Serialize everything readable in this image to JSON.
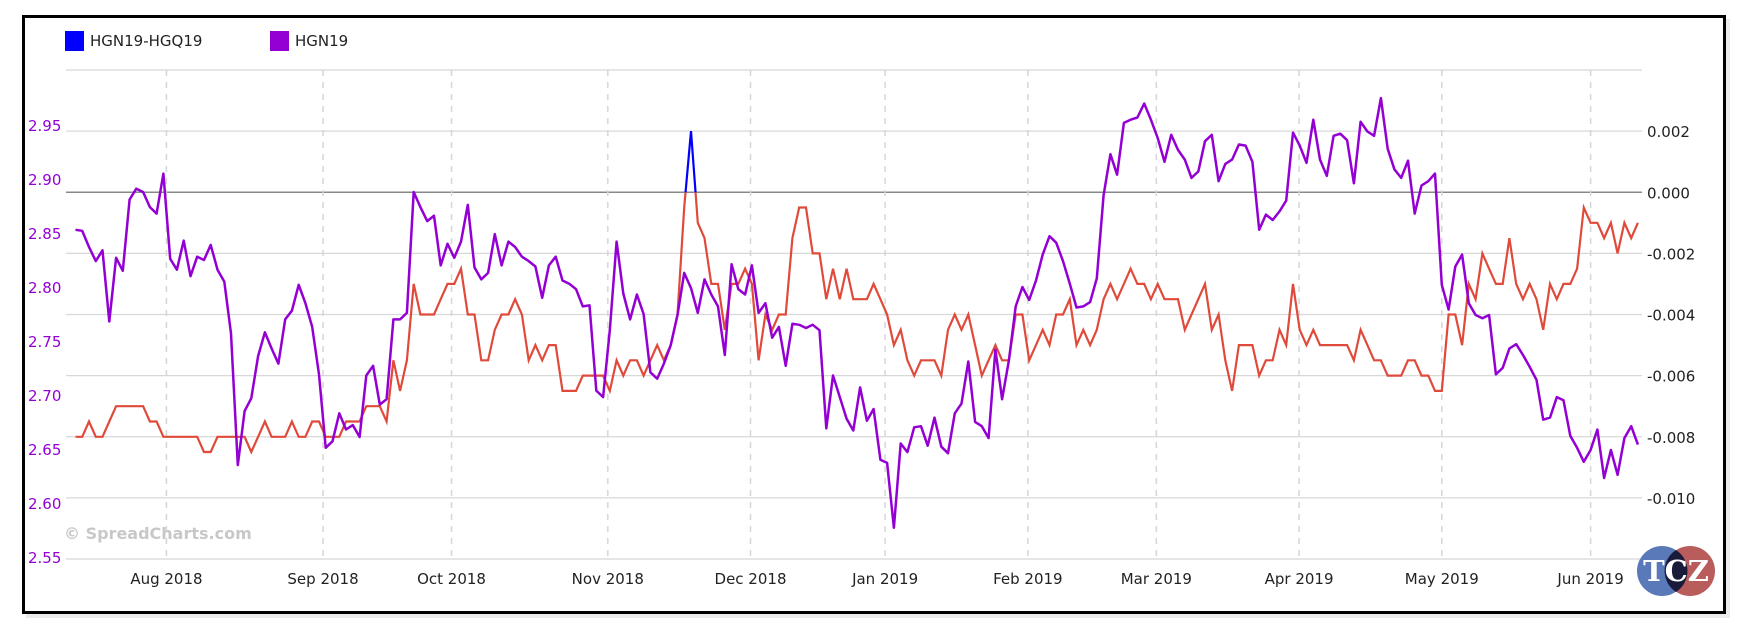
{
  "legend": [
    {
      "label": "HGN19-HGQ19",
      "color": "#0000ff"
    },
    {
      "label": "HGN19",
      "color": "#9400d3"
    }
  ],
  "watermark": "© SpreadCharts.com",
  "logo_text": "TCZ",
  "colors": {
    "spread_positive": "#0000ff",
    "spread_negative": "#e04a3b",
    "outright": "#9400d3",
    "left_axis": "#9400d3",
    "zero_line": "#888888"
  },
  "chart_data": {
    "type": "line",
    "title": "",
    "x_axis": {
      "type": "trading-day index",
      "range": [
        -1.4,
        231.6
      ],
      "ticks": [
        {
          "label": "Aug 2018",
          "at": 13.45
        },
        {
          "label": "Sep 2018",
          "at": 36.6
        },
        {
          "label": "Oct 2018",
          "at": 55.6
        },
        {
          "label": "Nov 2018",
          "at": 78.7
        },
        {
          "label": "Dec 2018",
          "at": 99.8
        },
        {
          "label": "Jan 2019",
          "at": 119.7
        },
        {
          "label": "Feb 2019",
          "at": 140.8
        },
        {
          "label": "Mar 2019",
          "at": 159.8
        },
        {
          "label": "Apr 2019",
          "at": 180.9
        },
        {
          "label": "May 2019",
          "at": 202.0
        },
        {
          "label": "Jun 2019",
          "at": 224.0
        }
      ]
    },
    "left_axis": {
      "series": "HGN19",
      "ylim": [
        2.548,
        3.001
      ],
      "ticks": [
        "2.55",
        "2.60",
        "2.65",
        "2.70",
        "2.75",
        "2.80",
        "2.85",
        "2.90",
        "2.95"
      ]
    },
    "right_axis": {
      "series": "HGN19-HGQ19",
      "ylim": [
        -0.012,
        0.004
      ],
      "ticks": [
        "0.002",
        "0.000",
        "-0.002",
        "-0.004",
        "-0.006",
        "-0.008",
        "-0.010"
      ],
      "gridlines": [
        0.004,
        0.002,
        0,
        -0.002,
        -0.004,
        -0.006,
        -0.008,
        -0.01,
        -0.012
      ]
    },
    "series": [
      {
        "name": "HGN19",
        "axis": "left",
        "values": [
          2.853,
          2.852,
          2.837,
          2.824,
          2.834,
          2.768,
          2.827,
          2.815,
          2.881,
          2.891,
          2.888,
          2.874,
          2.868,
          2.905,
          2.826,
          2.816,
          2.843,
          2.81,
          2.828,
          2.825,
          2.839,
          2.816,
          2.805,
          2.757,
          2.635,
          2.685,
          2.697,
          2.736,
          2.758,
          2.743,
          2.729,
          2.77,
          2.778,
          2.802,
          2.785,
          2.763,
          2.719,
          2.651,
          2.657,
          2.683,
          2.668,
          2.672,
          2.661,
          2.718,
          2.727,
          2.691,
          2.696,
          2.77,
          2.77,
          2.776,
          2.888,
          2.874,
          2.861,
          2.866,
          2.82,
          2.84,
          2.827,
          2.842,
          2.876,
          2.818,
          2.807,
          2.813,
          2.849,
          2.82,
          2.842,
          2.837,
          2.828,
          2.824,
          2.819,
          2.79,
          2.82,
          2.828,
          2.806,
          2.803,
          2.798,
          2.782,
          2.783,
          2.704,
          2.698,
          2.76,
          2.842,
          2.794,
          2.77,
          2.793,
          2.775,
          2.721,
          2.715,
          2.729,
          2.746,
          2.774,
          2.813,
          2.799,
          2.776,
          2.807,
          2.793,
          2.782,
          2.737,
          2.821,
          2.798,
          2.793,
          2.82,
          2.776,
          2.785,
          2.753,
          2.763,
          2.727,
          2.766,
          2.765,
          2.762,
          2.765,
          2.76,
          2.669,
          2.718,
          2.698,
          2.678,
          2.667,
          2.707,
          2.676,
          2.687,
          2.64,
          2.637,
          2.577,
          2.655,
          2.647,
          2.67,
          2.671,
          2.653,
          2.679,
          2.652,
          2.646,
          2.683,
          2.692,
          2.731,
          2.675,
          2.671,
          2.66,
          2.742,
          2.696,
          2.732,
          2.782,
          2.8,
          2.788,
          2.806,
          2.83,
          2.847,
          2.841,
          2.824,
          2.803,
          2.781,
          2.782,
          2.786,
          2.808,
          2.885,
          2.923,
          2.904,
          2.952,
          2.955,
          2.957,
          2.97,
          2.955,
          2.938,
          2.916,
          2.941,
          2.927,
          2.918,
          2.901,
          2.907,
          2.935,
          2.941,
          2.898,
          2.914,
          2.918,
          2.932,
          2.931,
          2.916,
          2.853,
          2.867,
          2.862,
          2.87,
          2.88,
          2.943,
          2.931,
          2.915,
          2.955,
          2.918,
          2.903,
          2.94,
          2.942,
          2.936,
          2.896,
          2.953,
          2.944,
          2.94,
          2.975,
          2.928,
          2.909,
          2.901,
          2.917,
          2.868,
          2.894,
          2.898,
          2.905,
          2.802,
          2.779,
          2.819,
          2.83,
          2.785,
          2.774,
          2.771,
          2.774,
          2.719,
          2.725,
          2.743,
          2.747,
          2.737,
          2.726,
          2.714,
          2.677,
          2.679,
          2.698,
          2.695,
          2.662,
          2.651,
          2.638,
          2.649,
          2.668,
          2.623,
          2.649,
          2.626,
          2.66,
          2.671,
          2.654
        ]
      },
      {
        "name": "HGN19-HGQ19",
        "axis": "right",
        "values": [
          -0.008,
          -0.008,
          -0.0075,
          -0.008,
          -0.008,
          -0.0075,
          -0.007,
          -0.007,
          -0.007,
          -0.007,
          -0.007,
          -0.0075,
          -0.0075,
          -0.008,
          -0.008,
          -0.008,
          -0.008,
          -0.008,
          -0.008,
          -0.0085,
          -0.0085,
          -0.008,
          -0.008,
          -0.008,
          -0.008,
          -0.008,
          -0.0085,
          -0.008,
          -0.0075,
          -0.008,
          -0.008,
          -0.008,
          -0.0075,
          -0.008,
          -0.008,
          -0.0075,
          -0.0075,
          -0.008,
          -0.008,
          -0.008,
          -0.0075,
          -0.0075,
          -0.0075,
          -0.007,
          -0.007,
          -0.007,
          -0.0075,
          -0.0055,
          -0.0065,
          -0.0055,
          -0.003,
          -0.004,
          -0.004,
          -0.004,
          -0.0035,
          -0.003,
          -0.003,
          -0.0025,
          -0.004,
          -0.004,
          -0.0055,
          -0.0055,
          -0.0045,
          -0.004,
          -0.004,
          -0.0035,
          -0.004,
          -0.0055,
          -0.005,
          -0.0055,
          -0.005,
          -0.005,
          -0.0065,
          -0.0065,
          -0.0065,
          -0.006,
          -0.006,
          -0.006,
          -0.006,
          -0.0065,
          -0.0055,
          -0.006,
          -0.0055,
          -0.0055,
          -0.006,
          -0.0055,
          -0.005,
          -0.0055,
          -0.005,
          -0.004,
          -0.0005,
          0.002,
          -0.001,
          -0.0015,
          -0.003,
          -0.003,
          -0.0045,
          -0.003,
          -0.003,
          -0.0025,
          -0.003,
          -0.0055,
          -0.004,
          -0.0045,
          -0.004,
          -0.004,
          -0.0015,
          -0.0005,
          -0.0005,
          -0.002,
          -0.002,
          -0.0035,
          -0.0025,
          -0.0035,
          -0.0025,
          -0.0035,
          -0.0035,
          -0.0035,
          -0.003,
          -0.0035,
          -0.004,
          -0.005,
          -0.0045,
          -0.0055,
          -0.006,
          -0.0055,
          -0.0055,
          -0.0055,
          -0.006,
          -0.0045,
          -0.004,
          -0.0045,
          -0.004,
          -0.005,
          -0.006,
          -0.0055,
          -0.005,
          -0.0055,
          -0.0055,
          -0.004,
          -0.004,
          -0.0055,
          -0.005,
          -0.0045,
          -0.005,
          -0.004,
          -0.004,
          -0.0035,
          -0.005,
          -0.0045,
          -0.005,
          -0.0045,
          -0.0035,
          -0.003,
          -0.0035,
          -0.003,
          -0.0025,
          -0.003,
          -0.003,
          -0.0035,
          -0.003,
          -0.0035,
          -0.0035,
          -0.0035,
          -0.0045,
          -0.004,
          -0.0035,
          -0.003,
          -0.0045,
          -0.004,
          -0.0055,
          -0.0065,
          -0.005,
          -0.005,
          -0.005,
          -0.006,
          -0.0055,
          -0.0055,
          -0.0045,
          -0.005,
          -0.003,
          -0.0045,
          -0.005,
          -0.0045,
          -0.005,
          -0.005,
          -0.005,
          -0.005,
          -0.005,
          -0.0055,
          -0.0045,
          -0.005,
          -0.0055,
          -0.0055,
          -0.006,
          -0.006,
          -0.006,
          -0.0055,
          -0.0055,
          -0.006,
          -0.006,
          -0.0065,
          -0.0065,
          -0.004,
          -0.004,
          -0.005,
          -0.003,
          -0.0035,
          -0.002,
          -0.0025,
          -0.003,
          -0.003,
          -0.0015,
          -0.003,
          -0.0035,
          -0.003,
          -0.0035,
          -0.0045,
          -0.003,
          -0.0035,
          -0.003,
          -0.003,
          -0.0025,
          -0.0005,
          -0.001,
          -0.001,
          -0.0015,
          -0.001,
          -0.002,
          -0.001,
          -0.0015,
          -0.001
        ]
      }
    ]
  }
}
